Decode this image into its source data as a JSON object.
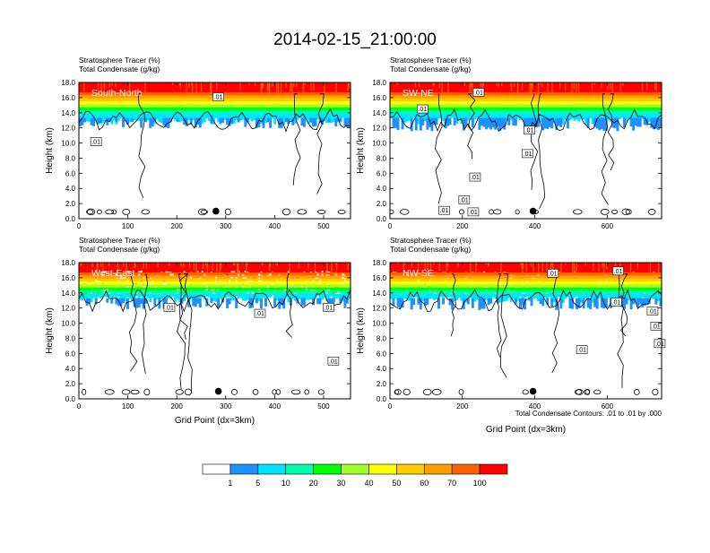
{
  "title": "2014-02-15_21:00:00",
  "footnote": "Total Condensate Contours: .01 to .01 by .000",
  "colorbar": {
    "colors": [
      "#ffffff",
      "#1e90ff",
      "#00e5ff",
      "#00ffaa",
      "#00ff00",
      "#a0ff28",
      "#ffff00",
      "#ffcc00",
      "#ffa000",
      "#ff6000",
      "#ff0000"
    ],
    "labels": [
      "1",
      "5",
      "10",
      "20",
      "30",
      "40",
      "50",
      "60",
      "70",
      "100"
    ]
  },
  "chart_data": [
    {
      "type": "heatmap",
      "title_lines": [
        "Stratosphere Tracer   (%)",
        "Total Condensate   (g/kg)"
      ],
      "section_label": "South-North",
      "ylabel": "Height (km)",
      "xlabel": "",
      "xlim": [
        0,
        555
      ],
      "ylim": [
        0,
        18
      ],
      "xticks": [
        0,
        100,
        200,
        300,
        400,
        500
      ],
      "yticks": [
        "0.0",
        "2.0",
        "4.0",
        "6.0",
        "8.0",
        "10.0",
        "12.0",
        "14.0",
        "16.0",
        "18.0"
      ],
      "marker": {
        "x": 280,
        "y": 1.0
      },
      "contour_labels": [
        {
          "text": ".01",
          "x": 285,
          "y": 16.1
        },
        {
          "text": ".01",
          "x": 35,
          "y": 10.2
        }
      ],
      "tracer_band": {
        "top_km": 18,
        "base_km": 14.5,
        "low_km": 12.4
      }
    },
    {
      "type": "heatmap",
      "title_lines": [
        "Stratosphere Tracer   (%)",
        "Total Condensate   (g/kg)"
      ],
      "section_label": "SW-NE",
      "ylabel": "Height (km)",
      "xlabel": "",
      "xlim": [
        0,
        750
      ],
      "ylim": [
        0,
        18
      ],
      "xticks": [
        0,
        200,
        400,
        600
      ],
      "yticks": [
        "0.0",
        "2.0",
        "4.0",
        "6.0",
        "8.0",
        "10.0",
        "12.0",
        "14.0",
        "16.0",
        "18.0"
      ],
      "marker": {
        "x": 395,
        "y": 1.0
      },
      "contour_labels": [
        {
          "text": ".01",
          "x": 245,
          "y": 16.7
        },
        {
          "text": ".01",
          "x": 90,
          "y": 14.5
        },
        {
          "text": ".01",
          "x": 385,
          "y": 11.7
        },
        {
          "text": ".01",
          "x": 380,
          "y": 8.6
        },
        {
          "text": ".01",
          "x": 235,
          "y": 5.5
        },
        {
          "text": ".01",
          "x": 205,
          "y": 2.5
        },
        {
          "text": ".01",
          "x": 150,
          "y": 1.1
        },
        {
          "text": ".01",
          "x": 230,
          "y": 0.9
        }
      ],
      "tracer_band": {
        "top_km": 18,
        "base_km": 14.5,
        "low_km": 12.0
      }
    },
    {
      "type": "heatmap",
      "title_lines": [
        "Stratosphere Tracer   (%)",
        "Total Condensate   (g/kg)"
      ],
      "section_label": "West-East",
      "ylabel": "Height (km)",
      "xlabel": "Grid Point (dx=3km)",
      "xlim": [
        0,
        555
      ],
      "ylim": [
        0,
        18
      ],
      "xticks": [
        0,
        100,
        200,
        300,
        400,
        500
      ],
      "yticks": [
        "0.0",
        "2.0",
        "4.0",
        "6.0",
        "8.0",
        "10.0",
        "12.0",
        "14.0",
        "16.0",
        "18.0"
      ],
      "marker": {
        "x": 285,
        "y": 1.0
      },
      "contour_labels": [
        {
          "text": ".01",
          "x": 185,
          "y": 12.1
        },
        {
          "text": ".01",
          "x": 370,
          "y": 11.3
        },
        {
          "text": ".01",
          "x": 510,
          "y": 12.1
        },
        {
          "text": ".01",
          "x": 520,
          "y": 5.0
        }
      ],
      "tracer_band": {
        "top_km": 18,
        "base_km": 15.0,
        "low_km": 12.0
      }
    },
    {
      "type": "heatmap",
      "title_lines": [
        "Stratosphere Tracer   (%)",
        "Total Condensate   (g/kg)"
      ],
      "section_label": "NW-SE",
      "ylabel": "Height (km)",
      "xlabel": "Grid Point (dx=3km)",
      "xlim": [
        0,
        750
      ],
      "ylim": [
        0,
        18
      ],
      "xticks": [
        0,
        200,
        400,
        600
      ],
      "yticks": [
        "0.0",
        "2.0",
        "4.0",
        "6.0",
        "8.0",
        "10.0",
        "12.0",
        "14.0",
        "16.0",
        "18.0"
      ],
      "marker": {
        "x": 395,
        "y": 1.0
      },
      "contour_labels": [
        {
          "text": ".01",
          "x": 450,
          "y": 16.6
        },
        {
          "text": ".01",
          "x": 630,
          "y": 16.9
        },
        {
          "text": ".01",
          "x": 625,
          "y": 12.8
        },
        {
          "text": ".01",
          "x": 725,
          "y": 11.6
        },
        {
          "text": ".01",
          "x": 735,
          "y": 9.6
        },
        {
          "text": ".01",
          "x": 530,
          "y": 6.5
        },
        {
          "text": ".01",
          "x": 745,
          "y": 7.3
        }
      ],
      "tracer_band": {
        "top_km": 18,
        "base_km": 14.8,
        "low_km": 12.0
      }
    }
  ]
}
